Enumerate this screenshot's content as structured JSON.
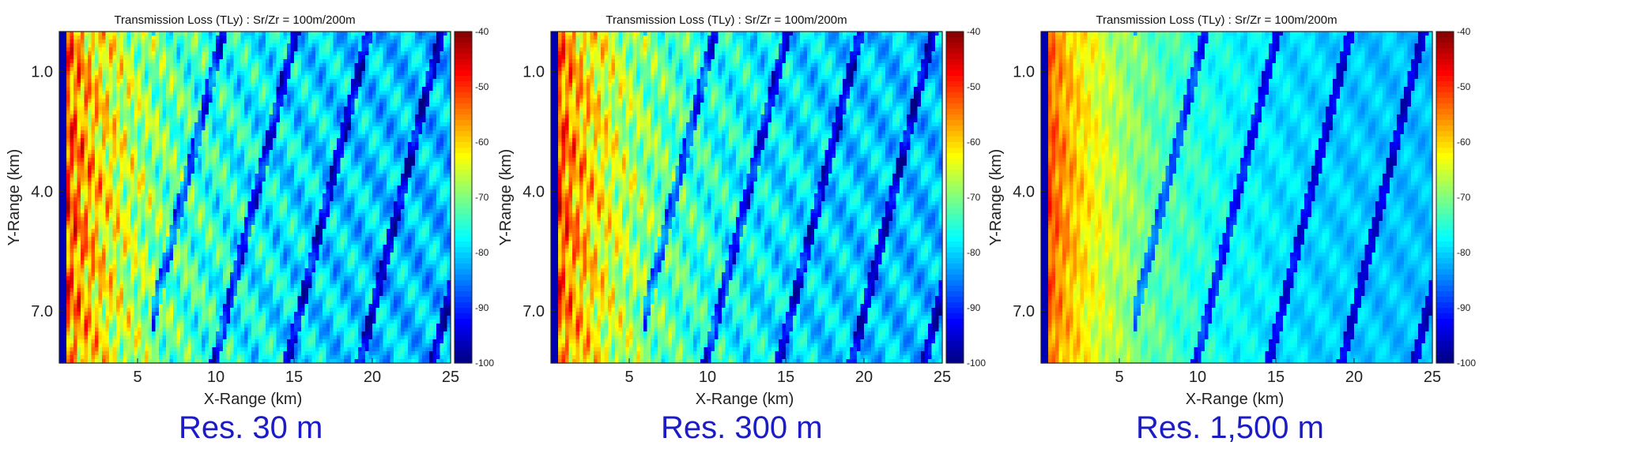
{
  "chart_data": [
    {
      "type": "heatmap",
      "title": "Transmission Loss (TLy) : Sr/Zr = 100m/200m",
      "xlabel": "X-Range (km)",
      "ylabel": "Y-Range (km)",
      "xlim": [
        0,
        25
      ],
      "ylim": [
        0,
        8.3
      ],
      "y_reversed": true,
      "x_ticks": [
        5,
        10,
        15,
        20,
        25
      ],
      "x_tick_labels": [
        "5",
        "10",
        "15",
        "20",
        "25"
      ],
      "y_ticks": [
        1.0,
        4.0,
        7.0
      ],
      "y_tick_labels": [
        "1.0",
        "4.0",
        "7.0"
      ],
      "colorbar": {
        "min": -100,
        "max": -40,
        "ticks": [
          -40,
          -50,
          -60,
          -70,
          -80,
          -90,
          -100
        ],
        "tick_labels": [
          "-40",
          "-50",
          "-60",
          "-70",
          "-80",
          "-90",
          "-100"
        ],
        "colormap": "jet"
      },
      "caption": "Res. 30 m",
      "roughness": 1.0
    },
    {
      "type": "heatmap",
      "title": "Transmission Loss (TLy) : Sr/Zr = 100m/200m",
      "xlabel": "X-Range (km)",
      "ylabel": "Y-Range (km)",
      "xlim": [
        0,
        25
      ],
      "ylim": [
        0,
        8.3
      ],
      "y_reversed": true,
      "x_ticks": [
        5,
        10,
        15,
        20,
        25
      ],
      "x_tick_labels": [
        "5",
        "10",
        "15",
        "20",
        "25"
      ],
      "y_ticks": [
        1.0,
        4.0,
        7.0
      ],
      "y_tick_labels": [
        "1.0",
        "4.0",
        "7.0"
      ],
      "colorbar": {
        "min": -100,
        "max": -40,
        "ticks": [
          -40,
          -50,
          -60,
          -70,
          -80,
          -90,
          -100
        ],
        "tick_labels": [
          "-40",
          "-50",
          "-60",
          "-70",
          "-80",
          "-90",
          "-100"
        ],
        "colormap": "jet"
      },
      "caption": "Res. 300 m",
      "roughness": 0.9
    },
    {
      "type": "heatmap",
      "title": "Transmission Loss (TLy) : Sr/Zr = 100m/200m",
      "xlabel": "X-Range (km)",
      "ylabel": "Y-Range (km)",
      "xlim": [
        0,
        25
      ],
      "ylim": [
        0,
        8.3
      ],
      "y_reversed": true,
      "x_ticks": [
        5,
        10,
        15,
        20,
        25
      ],
      "x_tick_labels": [
        "5",
        "10",
        "15",
        "20",
        "25"
      ],
      "y_ticks": [
        1.0,
        4.0,
        7.0
      ],
      "y_tick_labels": [
        "1.0",
        "4.0",
        "7.0"
      ],
      "colorbar": {
        "min": -100,
        "max": -40,
        "ticks": [
          -40,
          -50,
          -60,
          -70,
          -80,
          -90,
          -100
        ],
        "tick_labels": [
          "-40",
          "-50",
          "-60",
          "-70",
          "-80",
          "-90",
          "-100"
        ],
        "colormap": "jet"
      },
      "caption": "Res. 1,500 m",
      "roughness": 0.45
    }
  ],
  "colors": {
    "caption": "#1c1cc6",
    "axis": "#222222"
  }
}
